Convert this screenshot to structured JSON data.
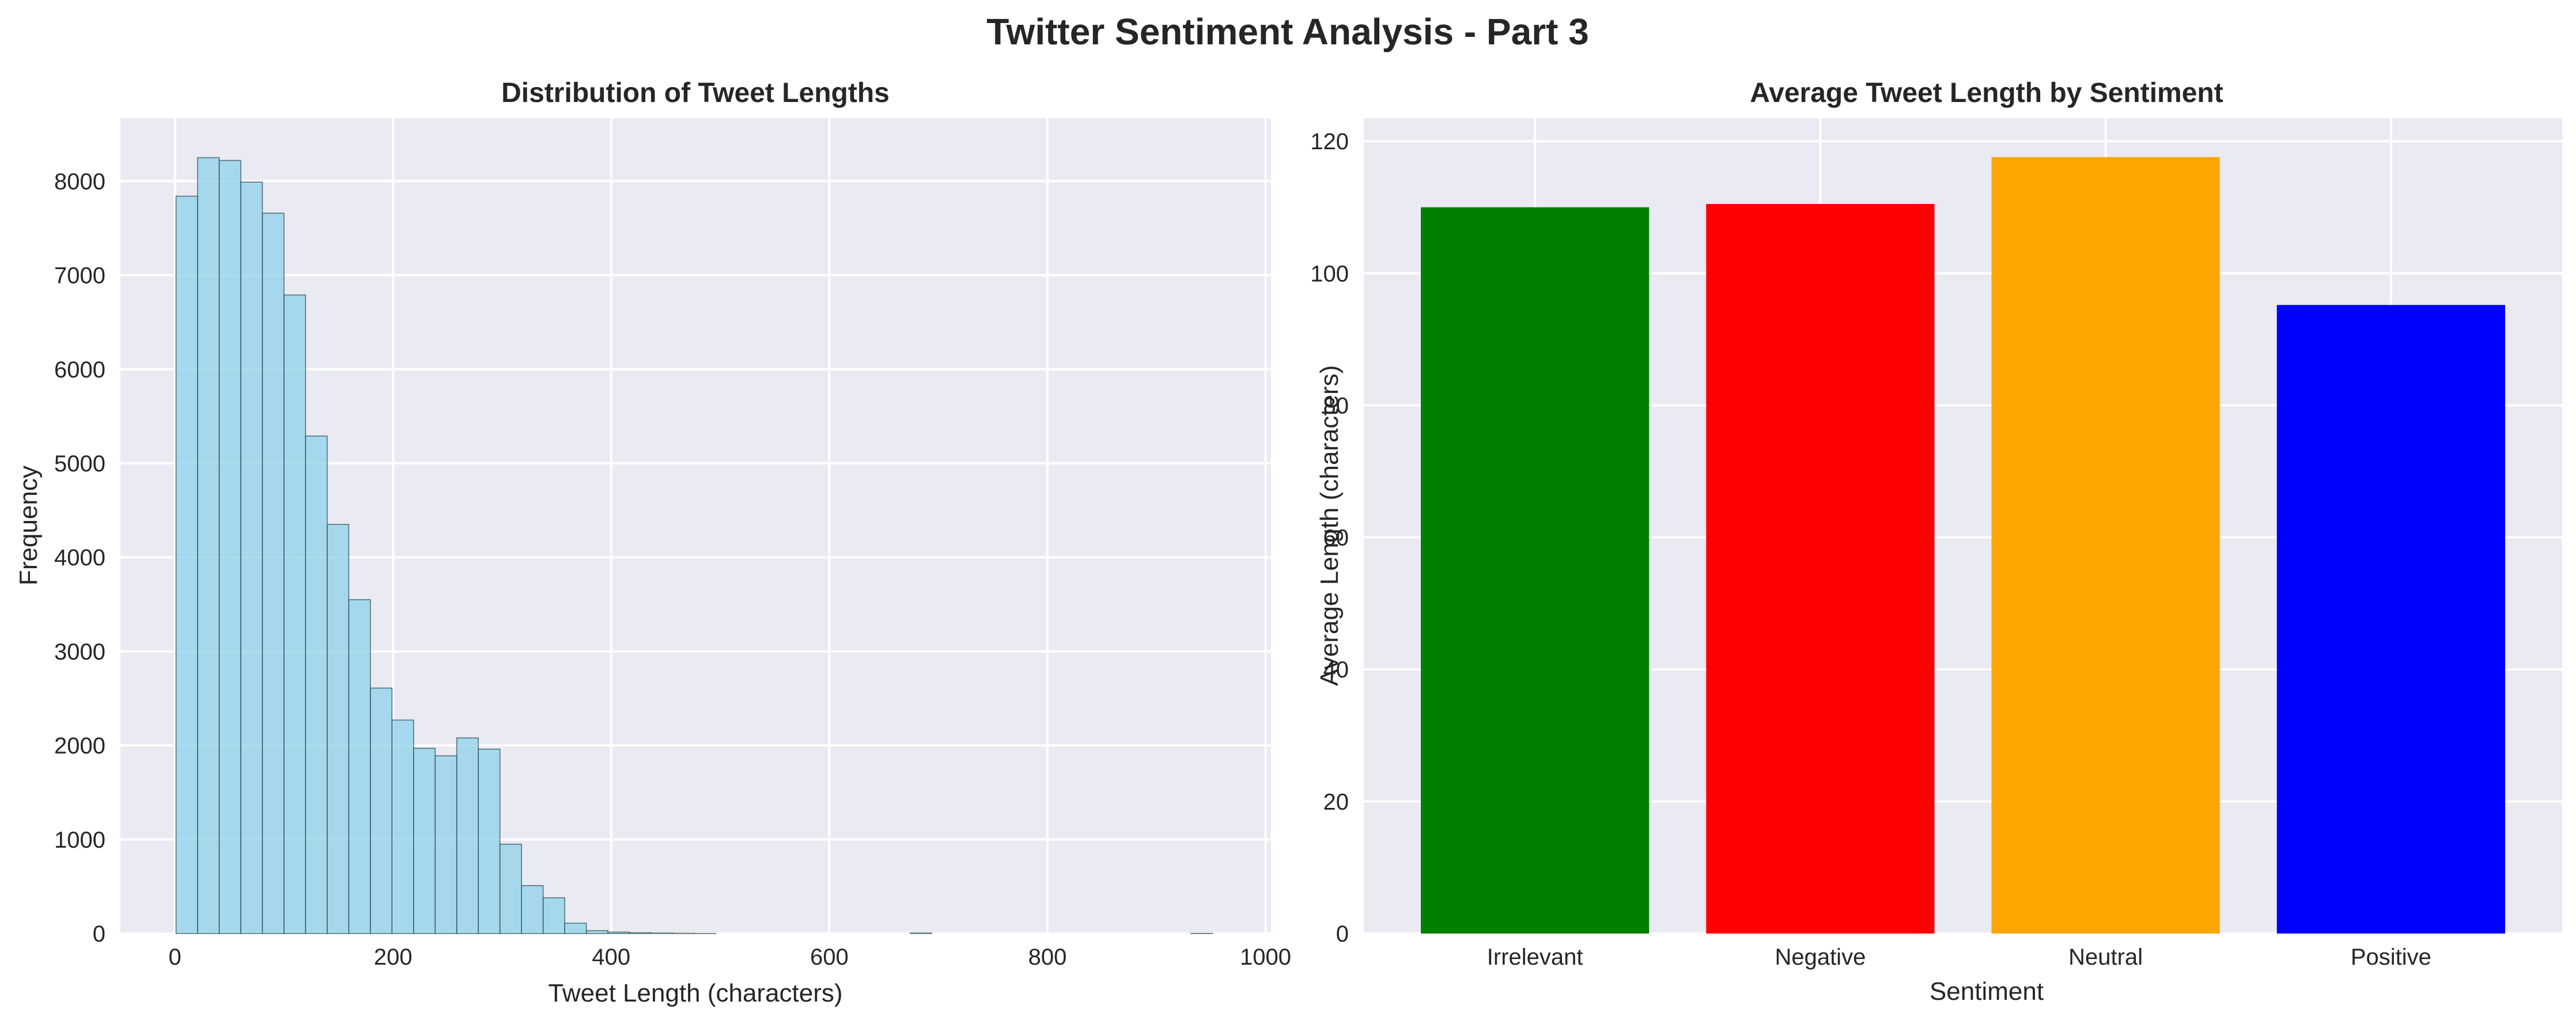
{
  "figure": {
    "title": "Twitter Sentiment Analysis - Part 3"
  },
  "chart_data": [
    {
      "type": "bar",
      "subtype": "histogram",
      "title": "Distribution of Tweet Lengths",
      "xlabel": "Tweet Length (characters)",
      "ylabel": "Frequency",
      "xlim": [
        -50,
        1005
      ],
      "ylim": [
        0,
        8670
      ],
      "xticks": [
        0,
        200,
        400,
        600,
        800,
        1000
      ],
      "xtick_labels": [
        "0",
        "200",
        "400",
        "600",
        "800",
        "1000"
      ],
      "yticks": [
        0,
        1000,
        2000,
        3000,
        4000,
        5000,
        6000,
        7000,
        8000
      ],
      "ytick_labels": [
        "0",
        "1000",
        "2000",
        "3000",
        "4000",
        "5000",
        "6000",
        "7000",
        "8000"
      ],
      "grid": true,
      "bar_color": "#87ceeb",
      "bar_edge_color": "#2f4f4f",
      "bin_width": 19.8,
      "bin_start": 1,
      "bin_lefts": [
        1,
        20.8,
        40.6,
        60.4,
        80.2,
        100,
        119.8,
        139.6,
        159.4,
        179.2,
        199,
        218.8,
        238.6,
        258.4,
        278.2,
        298,
        317.8,
        337.6,
        357.4,
        377.2,
        397,
        416.8,
        436.6,
        456.4,
        476.2,
        496,
        515.8,
        535.6,
        555.4,
        575.2,
        595,
        614.8,
        634.6,
        654.4,
        674.2,
        694,
        713.8,
        733.6,
        753.4,
        773.2,
        793,
        812.8,
        832.6,
        852.4,
        872.2,
        892,
        911.8,
        931.6
      ],
      "values": [
        7840,
        8250,
        8220,
        7990,
        7660,
        6790,
        5290,
        4350,
        3550,
        2610,
        2270,
        1970,
        1890,
        2080,
        1960,
        950,
        510,
        380,
        110,
        30,
        15,
        8,
        5,
        3,
        1,
        0,
        0,
        0,
        0,
        0,
        0,
        0,
        0,
        0,
        5,
        0,
        0,
        0,
        0,
        0,
        0,
        0,
        0,
        0,
        0,
        0,
        0,
        2
      ]
    },
    {
      "type": "bar",
      "title": "Average Tweet Length by Sentiment",
      "xlabel": "Sentiment",
      "ylabel": "Average Length (characters)",
      "categories": [
        "Irrelevant",
        "Negative",
        "Neutral",
        "Positive"
      ],
      "values": [
        110.0,
        110.5,
        117.6,
        95.2
      ],
      "colors": [
        "#008000",
        "#ff0000",
        "#ffa500",
        "#0000ff"
      ],
      "ylim": [
        0,
        123.5
      ],
      "yticks": [
        0,
        20,
        40,
        60,
        80,
        100,
        120
      ],
      "ytick_labels": [
        "0",
        "20",
        "40",
        "60",
        "80",
        "100",
        "120"
      ],
      "grid": true
    }
  ]
}
